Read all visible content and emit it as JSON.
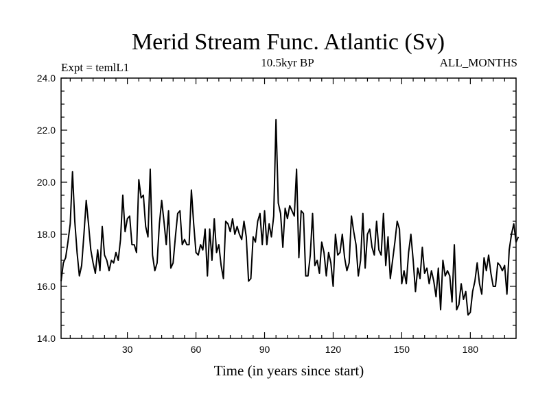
{
  "chart_data": {
    "type": "line",
    "title": "Merid Stream Func. Atlantic (Sv)",
    "subtitle_left": "Expt = temlL1",
    "subtitle_center": "10.5kyr BP",
    "subtitle_right": "ALL_MONTHS",
    "xlabel": "Time (in years since start)",
    "ylabel": "",
    "xlim": [
      1,
      200
    ],
    "ylim": [
      14.0,
      24.0
    ],
    "x_ticks": [
      30,
      60,
      90,
      120,
      150,
      180
    ],
    "x_tick_labels": [
      "30",
      "60",
      "90",
      "120",
      "150",
      "180"
    ],
    "y_ticks": [
      14,
      16,
      18,
      20,
      22,
      24
    ],
    "y_tick_labels": [
      "14.0",
      "16.0",
      "18.0",
      "20.0",
      "22.0",
      "24.0"
    ],
    "series": [
      {
        "name": "Merid Stream Func. Atlantic",
        "x_start": 1,
        "x_step": 1,
        "values": [
          16.2,
          16.9,
          17.1,
          17.7,
          18.4,
          20.4,
          18.5,
          17.3,
          16.4,
          16.8,
          18.0,
          19.3,
          18.4,
          17.4,
          16.9,
          16.5,
          17.4,
          16.6,
          18.3,
          17.2,
          17.0,
          16.6,
          17.0,
          16.9,
          17.3,
          17.0,
          17.8,
          19.5,
          18.1,
          18.6,
          18.7,
          17.6,
          17.6,
          17.3,
          20.1,
          19.4,
          19.5,
          18.3,
          17.9,
          20.5,
          17.2,
          16.6,
          16.9,
          18.4,
          19.3,
          18.5,
          17.6,
          18.9,
          16.7,
          16.9,
          17.9,
          18.8,
          18.9,
          17.6,
          17.8,
          17.6,
          17.6,
          19.7,
          18.4,
          17.3,
          17.2,
          17.6,
          17.4,
          18.2,
          16.4,
          18.2,
          17.0,
          18.6,
          17.3,
          17.6,
          16.8,
          16.3,
          18.5,
          18.4,
          18.1,
          18.6,
          18.0,
          18.3,
          18.0,
          17.8,
          18.5,
          17.9,
          16.2,
          16.3,
          17.9,
          17.7,
          18.5,
          18.8,
          17.6,
          18.9,
          17.6,
          18.4,
          17.9,
          18.7,
          22.4,
          19.2,
          18.8,
          17.5,
          19.0,
          18.6,
          19.1,
          18.9,
          18.7,
          20.5,
          17.1,
          18.9,
          18.8,
          16.4,
          16.4,
          17.2,
          18.8,
          16.8,
          17.0,
          16.5,
          17.7,
          17.3,
          16.4,
          17.3,
          16.9,
          16.0,
          18.0,
          17.2,
          17.3,
          18.0,
          17.1,
          16.6,
          16.9,
          18.7,
          18.1,
          17.6,
          16.4,
          17.0,
          18.8,
          16.7,
          18.0,
          18.2,
          17.5,
          17.2,
          18.5,
          17.4,
          17.2,
          18.8,
          16.8,
          17.9,
          16.3,
          17.0,
          17.7,
          18.5,
          18.2,
          16.1,
          16.6,
          16.1,
          17.3,
          18.0,
          17.0,
          15.8,
          16.7,
          16.3,
          17.5,
          16.5,
          16.7,
          16.1,
          16.6,
          16.2,
          15.6,
          16.7,
          15.1,
          17.0,
          16.4,
          16.6,
          16.4,
          15.4,
          17.6,
          15.1,
          15.3,
          16.1,
          15.5,
          15.8,
          14.9,
          15.0,
          15.8,
          16.2,
          16.9,
          16.1,
          15.7,
          17.1,
          16.6,
          17.2,
          16.5,
          16.0,
          16.0,
          16.9,
          16.8,
          16.6,
          16.8,
          15.7,
          17.4,
          18.0,
          18.4,
          17.7,
          17.9
        ]
      }
    ]
  }
}
